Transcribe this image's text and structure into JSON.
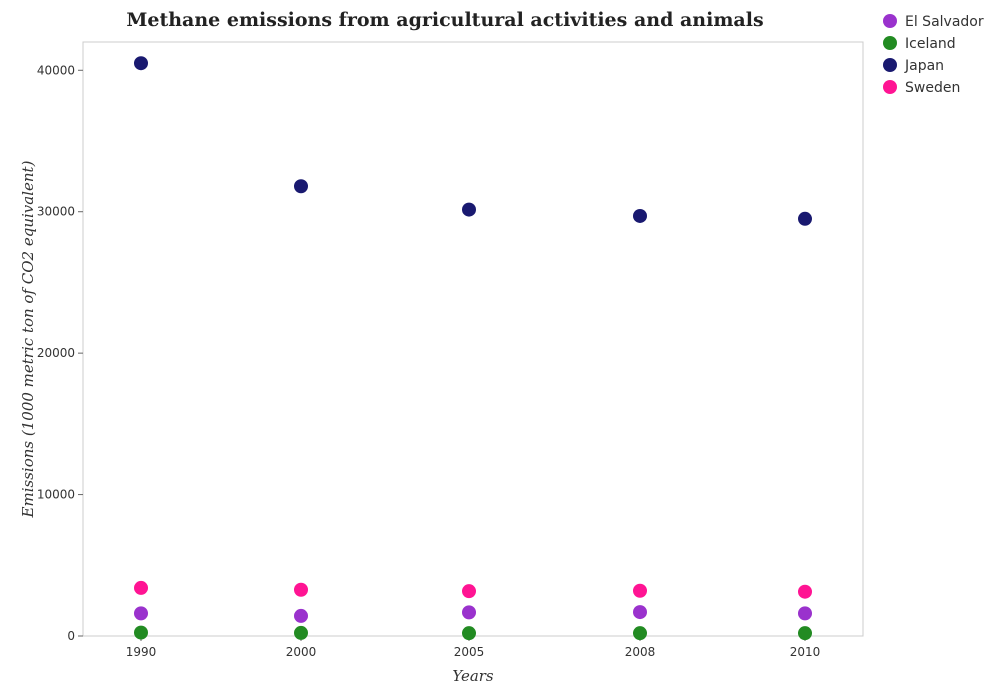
{
  "chart_data": {
    "type": "scatter",
    "title": "Methane emissions from agricultural activities and animals",
    "xlabel": "Years",
    "ylabel": "Emissions (1000 metric ton of CO2 equivalent)",
    "categories": [
      "1990",
      "2000",
      "2005",
      "2008",
      "2010"
    ],
    "ylim": [
      0,
      42000
    ],
    "yticks": [
      0,
      10000,
      20000,
      30000,
      40000
    ],
    "ytick_labels": [
      "0",
      "10000",
      "20000",
      "30000",
      "40000"
    ],
    "grid": false,
    "legend_position": "top-right",
    "series": [
      {
        "name": "El Salvador",
        "color": "#9a32cd",
        "values": [
          1600,
          1420,
          1670,
          1690,
          1600
        ]
      },
      {
        "name": "Iceland",
        "color": "#228b22",
        "values": [
          240,
          220,
          200,
          200,
          200
        ]
      },
      {
        "name": "Japan",
        "color": "#191970",
        "values": [
          40500,
          31800,
          30150,
          29700,
          29500
        ]
      },
      {
        "name": "Sweden",
        "color": "#ff1493",
        "values": [
          3400,
          3270,
          3170,
          3200,
          3130
        ]
      }
    ]
  }
}
